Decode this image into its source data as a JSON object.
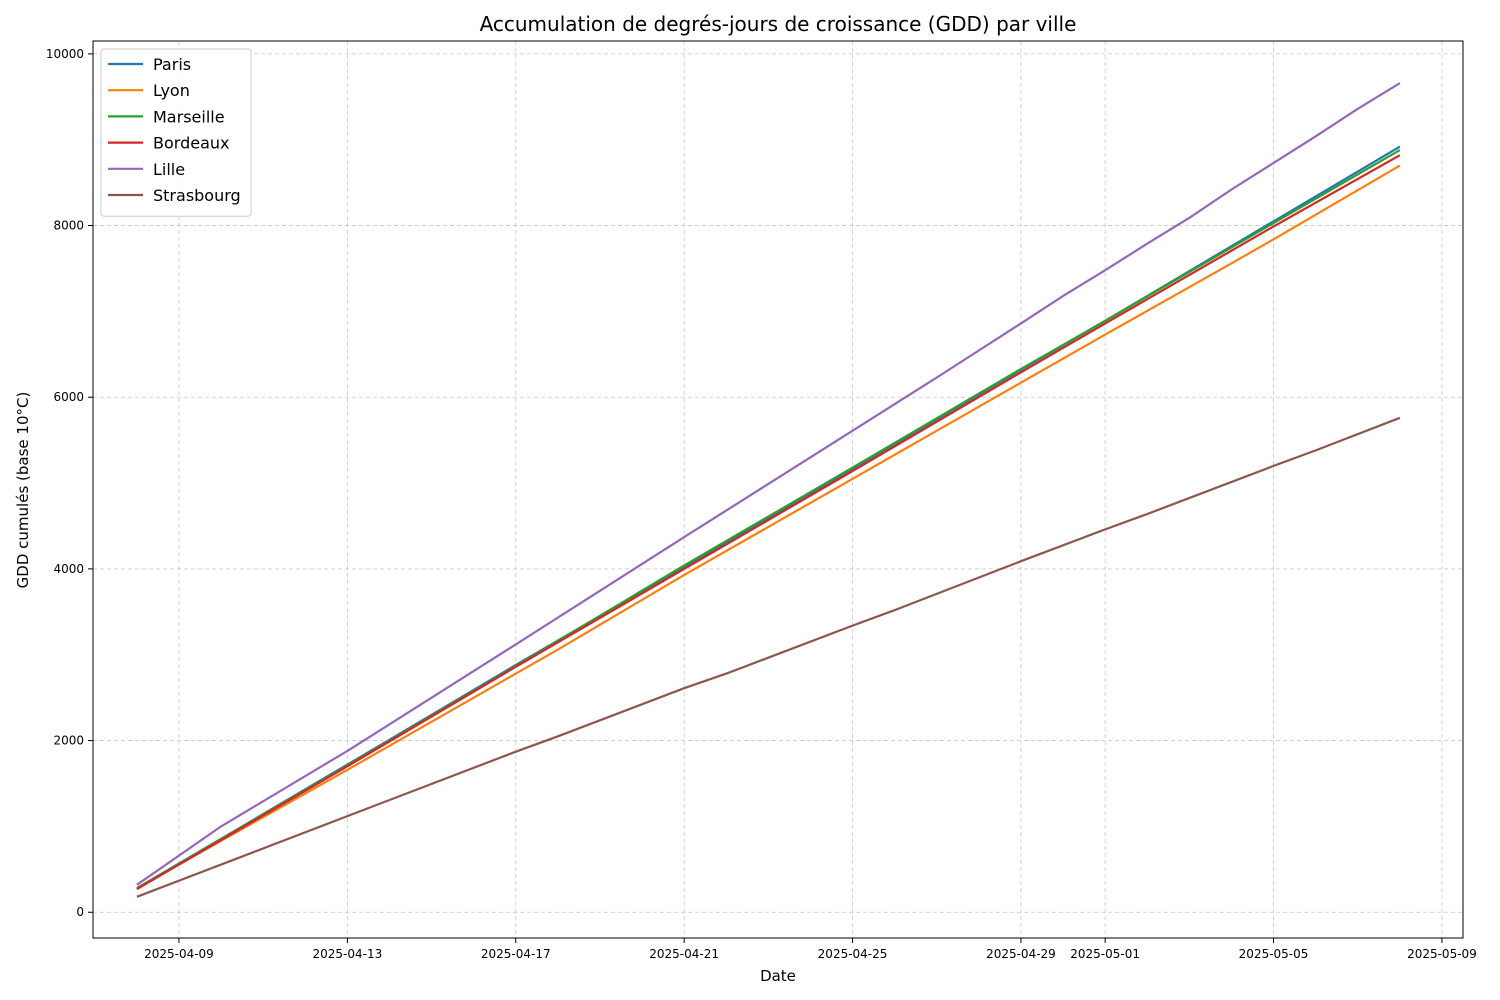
{
  "chart_data": {
    "type": "line",
    "title": "Accumulation de degrés-jours de croissance (GDD) par ville",
    "xlabel": "Date",
    "ylabel": "GDD cumulés (base 10°C)",
    "x_start": "2025-04-08",
    "x_end": "2025-05-08",
    "xlim": [
      "2025-04-06T23:00",
      "2025-05-09T12:00"
    ],
    "ylim": [
      -300,
      10150
    ],
    "x_ticks": [
      "2025-04-09",
      "2025-04-13",
      "2025-04-17",
      "2025-04-21",
      "2025-04-25",
      "2025-04-29",
      "2025-05-01",
      "2025-05-05",
      "2025-05-09"
    ],
    "y_ticks": [
      0,
      2000,
      4000,
      6000,
      8000,
      10000
    ],
    "grid": true,
    "legend_position": "top-left",
    "series": [
      {
        "name": "Paris",
        "color": "#1f77b4",
        "x": [
          "2025-04-08",
          "2025-04-13",
          "2025-04-17",
          "2025-04-21",
          "2025-04-25",
          "2025-04-29",
          "2025-05-01",
          "2025-05-05",
          "2025-05-08"
        ],
        "values": [
          280,
          1720,
          2880,
          4020,
          5170,
          6320,
          6890,
          8050,
          8920
        ]
      },
      {
        "name": "Lyon",
        "color": "#ff7f0e",
        "x": [
          "2025-04-08",
          "2025-04-13",
          "2025-04-17",
          "2025-04-18",
          "2025-04-21",
          "2025-04-25",
          "2025-04-29",
          "2025-05-01",
          "2025-05-04",
          "2025-05-05",
          "2025-05-08"
        ],
        "values": [
          280,
          1660,
          2780,
          3060,
          3930,
          5050,
          6170,
          6730,
          7560,
          7840,
          8700
        ]
      },
      {
        "name": "Marseille",
        "color": "#2ca02c",
        "x": [
          "2025-04-08",
          "2025-04-13",
          "2025-04-17",
          "2025-04-21",
          "2025-04-25",
          "2025-04-29",
          "2025-05-01",
          "2025-05-05",
          "2025-05-08"
        ],
        "values": [
          280,
          1710,
          2870,
          4040,
          5180,
          6330,
          6890,
          8030,
          8880
        ]
      },
      {
        "name": "Bordeaux",
        "color": "#d62728",
        "x": [
          "2025-04-08",
          "2025-04-13",
          "2025-04-17",
          "2025-04-21",
          "2025-04-25",
          "2025-04-29",
          "2025-05-01",
          "2025-05-05",
          "2025-05-08"
        ],
        "values": [
          270,
          1700,
          2860,
          4000,
          5140,
          6290,
          6860,
          7990,
          8820
        ]
      },
      {
        "name": "Lille",
        "color": "#9467bd",
        "x": [
          "2025-04-08",
          "2025-04-10",
          "2025-04-13",
          "2025-04-17",
          "2025-04-21",
          "2025-04-25",
          "2025-04-26",
          "2025-04-27",
          "2025-04-29",
          "2025-04-30",
          "2025-05-01",
          "2025-05-02",
          "2025-05-03",
          "2025-05-04",
          "2025-05-05",
          "2025-05-06",
          "2025-05-07",
          "2025-05-08"
        ],
        "values": [
          320,
          1000,
          1880,
          3120,
          4370,
          5610,
          5920,
          6230,
          6860,
          7180,
          7480,
          7790,
          8090,
          8420,
          8730,
          9040,
          9360,
          9660
        ]
      },
      {
        "name": "Strasbourg",
        "color": "#8c564b",
        "x": [
          "2025-04-08",
          "2025-04-13",
          "2025-04-17",
          "2025-04-18",
          "2025-04-21",
          "2025-04-22",
          "2025-04-25",
          "2025-04-26",
          "2025-04-29",
          "2025-05-01",
          "2025-05-02",
          "2025-05-05",
          "2025-05-06",
          "2025-05-08"
        ],
        "values": [
          180,
          1120,
          1870,
          2050,
          2610,
          2780,
          3340,
          3520,
          4090,
          4460,
          4640,
          5200,
          5380,
          5760
        ]
      }
    ]
  }
}
